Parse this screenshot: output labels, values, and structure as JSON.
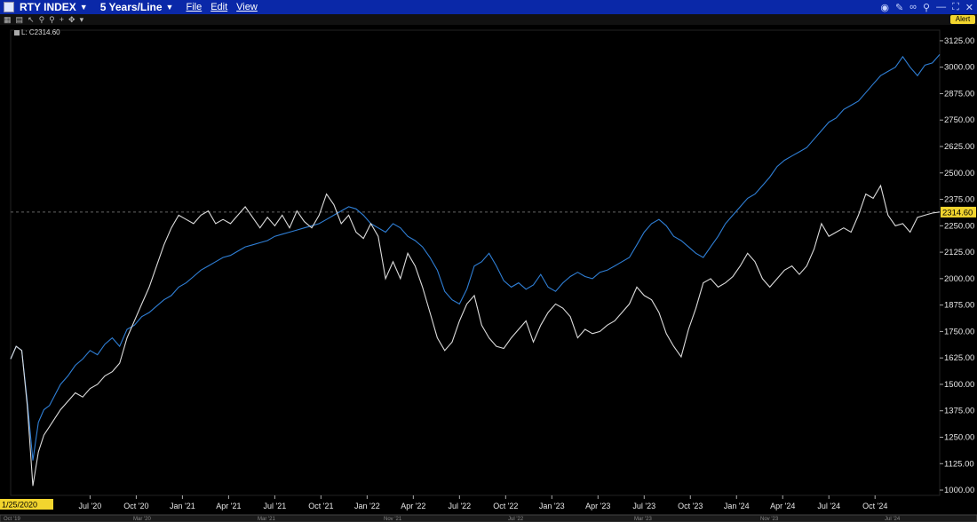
{
  "titlebar": {
    "security": "RTY INDEX",
    "view": "5 Years/Line",
    "menus": [
      "File",
      "Edit",
      "View"
    ],
    "window_controls": [
      "—",
      "⛶",
      "✕"
    ]
  },
  "toolbar": {
    "alert_label": "Alert"
  },
  "legend": {
    "label": "L: C2314.60"
  },
  "last_value": "2314.60",
  "start_date_label": "1/25/2020",
  "navigator_labels": [
    "Oct '19",
    "Mar '20",
    "Mar '21",
    "Nov '21",
    "Jul '22",
    "Mar '23",
    "Nov '23",
    "Jul '24"
  ],
  "colors": {
    "series_blue": "#2f7fd6",
    "series_white": "#dcdcdc",
    "bg": "#000000",
    "title_bar": "#0a28a8",
    "last_price_bg": "#f2d52e"
  },
  "chart_data": {
    "type": "line",
    "title": "RTY INDEX",
    "ylim": [
      975,
      3175
    ],
    "yticks": [
      1000,
      1125,
      1250,
      1375,
      1500,
      1625,
      1750,
      1875,
      2000,
      2125,
      2250,
      2375,
      2500,
      2625,
      2750,
      2875,
      3000,
      3125
    ],
    "ytick_labels": [
      "1000.00",
      "1125.00",
      "1250.00",
      "1375.00",
      "1500.00",
      "1625.00",
      "1750.00",
      "1875.00",
      "2000.00",
      "2125.00",
      "2250.00",
      "2375.00",
      "2500.00",
      "2625.00",
      "2750.00",
      "2875.00",
      "3000.00",
      "3125.00"
    ],
    "xtick_labels": [
      "Jul '20",
      "Oct '20",
      "Jan '21",
      "Apr '21",
      "Jul '21",
      "Oct '21",
      "Jan '22",
      "Apr '22",
      "Jul '22",
      "Oct '22",
      "Jan '23",
      "Apr '23",
      "Jul '23",
      "Oct '23",
      "Jan '24",
      "Apr '24",
      "Jul '24",
      "Oct '24"
    ],
    "x_ticks_months": [
      2020.5,
      2020.75,
      2021.0,
      2021.25,
      2021.5,
      2021.75,
      2022.0,
      2022.25,
      2022.5,
      2022.75,
      2023.0,
      2023.25,
      2023.5,
      2023.75,
      2024.0,
      2024.25,
      2024.5,
      2024.75
    ],
    "xlim": [
      2020.07,
      2025.1
    ],
    "reference_line": 2314.6,
    "series": [
      {
        "x": [
          2020.07,
          2020.1,
          2020.13,
          2020.16,
          2020.19,
          2020.22,
          2020.25,
          2020.28,
          2020.31,
          2020.34,
          2020.38,
          2020.42,
          2020.46,
          2020.5,
          2020.54,
          2020.58,
          2020.62,
          2020.66,
          2020.7,
          2020.74,
          2020.78,
          2020.82,
          2020.86,
          2020.9,
          2020.94,
          2020.98,
          2021.02,
          2021.06,
          2021.1,
          2021.14,
          2021.18,
          2021.22,
          2021.26,
          2021.3,
          2021.34,
          2021.38,
          2021.42,
          2021.46,
          2021.5,
          2021.54,
          2021.58,
          2021.62,
          2021.66,
          2021.7,
          2021.74,
          2021.78,
          2021.82,
          2021.86,
          2021.9,
          2021.94,
          2021.98,
          2022.02,
          2022.06,
          2022.1,
          2022.14,
          2022.18,
          2022.22,
          2022.26,
          2022.3,
          2022.34,
          2022.38,
          2022.42,
          2022.46,
          2022.5,
          2022.54,
          2022.58,
          2022.62,
          2022.66,
          2022.7,
          2022.74,
          2022.78,
          2022.82,
          2022.86,
          2022.9,
          2022.94,
          2022.98,
          2023.02,
          2023.06,
          2023.1,
          2023.14,
          2023.18,
          2023.22,
          2023.26,
          2023.3,
          2023.34,
          2023.38,
          2023.42,
          2023.46,
          2023.5,
          2023.54,
          2023.58,
          2023.62,
          2023.66,
          2023.7,
          2023.74,
          2023.78,
          2023.82,
          2023.86,
          2023.9,
          2023.94,
          2023.98,
          2024.02,
          2024.06,
          2024.1,
          2024.14,
          2024.18,
          2024.22,
          2024.26,
          2024.3,
          2024.34,
          2024.38,
          2024.42,
          2024.46,
          2024.5,
          2024.54,
          2024.58,
          2024.62,
          2024.66,
          2024.7,
          2024.74,
          2024.78,
          2024.82,
          2024.86,
          2024.9,
          2024.94,
          2024.98,
          2025.02,
          2025.06,
          2025.1
        ],
        "values": [
          1620,
          1680,
          1660,
          1420,
          1140,
          1320,
          1380,
          1400,
          1450,
          1500,
          1540,
          1590,
          1620,
          1660,
          1640,
          1690,
          1720,
          1680,
          1760,
          1780,
          1820,
          1840,
          1870,
          1900,
          1920,
          1960,
          1980,
          2010,
          2040,
          2060,
          2080,
          2100,
          2110,
          2130,
          2150,
          2160,
          2170,
          2180,
          2200,
          2210,
          2220,
          2230,
          2240,
          2250,
          2260,
          2280,
          2300,
          2320,
          2340,
          2330,
          2300,
          2260,
          2240,
          2220,
          2260,
          2240,
          2200,
          2180,
          2150,
          2100,
          2040,
          1940,
          1900,
          1880,
          1950,
          2060,
          2080,
          2120,
          2060,
          1990,
          1960,
          1980,
          1950,
          1970,
          2020,
          1960,
          1940,
          1980,
          2010,
          2030,
          2010,
          2000,
          2030,
          2040,
          2060,
          2080,
          2100,
          2160,
          2220,
          2260,
          2280,
          2250,
          2200,
          2180,
          2150,
          2120,
          2100,
          2150,
          2200,
          2260,
          2300,
          2340,
          2380,
          2400,
          2440,
          2480,
          2530,
          2560,
          2580,
          2600,
          2620,
          2660,
          2700,
          2740,
          2760,
          2800,
          2820,
          2840,
          2880,
          2920,
          2960,
          2980,
          3000,
          3050,
          3000,
          2960,
          3010,
          3020,
          3060
        ]
      },
      {
        "x": [
          2020.07,
          2020.1,
          2020.13,
          2020.16,
          2020.19,
          2020.22,
          2020.25,
          2020.28,
          2020.31,
          2020.34,
          2020.38,
          2020.42,
          2020.46,
          2020.5,
          2020.54,
          2020.58,
          2020.62,
          2020.66,
          2020.7,
          2020.74,
          2020.78,
          2020.82,
          2020.86,
          2020.9,
          2020.94,
          2020.98,
          2021.02,
          2021.06,
          2021.1,
          2021.14,
          2021.18,
          2021.22,
          2021.26,
          2021.3,
          2021.34,
          2021.38,
          2021.42,
          2021.46,
          2021.5,
          2021.54,
          2021.58,
          2021.62,
          2021.66,
          2021.7,
          2021.74,
          2021.78,
          2021.82,
          2021.86,
          2021.9,
          2021.94,
          2021.98,
          2022.02,
          2022.06,
          2022.1,
          2022.14,
          2022.18,
          2022.22,
          2022.26,
          2022.3,
          2022.34,
          2022.38,
          2022.42,
          2022.46,
          2022.5,
          2022.54,
          2022.58,
          2022.62,
          2022.66,
          2022.7,
          2022.74,
          2022.78,
          2022.82,
          2022.86,
          2022.9,
          2022.94,
          2022.98,
          2023.02,
          2023.06,
          2023.1,
          2023.14,
          2023.18,
          2023.22,
          2023.26,
          2023.3,
          2023.34,
          2023.38,
          2023.42,
          2023.46,
          2023.5,
          2023.54,
          2023.58,
          2023.62,
          2023.66,
          2023.7,
          2023.74,
          2023.78,
          2023.82,
          2023.86,
          2023.9,
          2023.94,
          2023.98,
          2024.02,
          2024.06,
          2024.1,
          2024.14,
          2024.18,
          2024.22,
          2024.26,
          2024.3,
          2024.34,
          2024.38,
          2024.42,
          2024.46,
          2024.5,
          2024.54,
          2024.58,
          2024.62,
          2024.66,
          2024.7,
          2024.74,
          2024.78,
          2024.82,
          2024.86,
          2024.9,
          2024.94,
          2024.98,
          2025.02,
          2025.06,
          2025.1
        ],
        "values": [
          1620,
          1680,
          1660,
          1400,
          1020,
          1180,
          1260,
          1300,
          1340,
          1380,
          1420,
          1460,
          1440,
          1480,
          1500,
          1540,
          1560,
          1600,
          1720,
          1800,
          1880,
          1960,
          2060,
          2160,
          2240,
          2300,
          2280,
          2260,
          2300,
          2320,
          2260,
          2280,
          2260,
          2300,
          2340,
          2290,
          2240,
          2290,
          2250,
          2300,
          2240,
          2320,
          2270,
          2240,
          2300,
          2400,
          2350,
          2260,
          2300,
          2220,
          2190,
          2260,
          2200,
          2000,
          2080,
          2000,
          2120,
          2060,
          1960,
          1840,
          1720,
          1660,
          1700,
          1800,
          1880,
          1920,
          1780,
          1720,
          1680,
          1670,
          1720,
          1760,
          1800,
          1700,
          1780,
          1840,
          1880,
          1860,
          1820,
          1720,
          1760,
          1740,
          1750,
          1780,
          1800,
          1840,
          1880,
          1960,
          1920,
          1900,
          1840,
          1740,
          1680,
          1630,
          1760,
          1860,
          1980,
          2000,
          1960,
          1980,
          2010,
          2060,
          2120,
          2080,
          2000,
          1960,
          2000,
          2040,
          2060,
          2020,
          2060,
          2140,
          2260,
          2200,
          2220,
          2240,
          2220,
          2300,
          2400,
          2380,
          2440,
          2300,
          2250,
          2260,
          2220,
          2290,
          2300,
          2310,
          2315
        ]
      }
    ]
  }
}
